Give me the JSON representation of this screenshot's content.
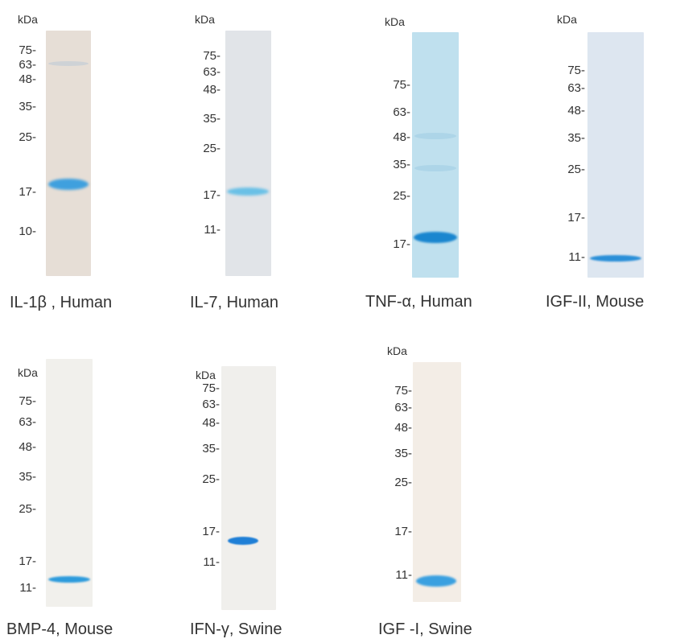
{
  "panels": [
    {
      "kda": "kDa",
      "markers": [
        "75-",
        "63-",
        "48-",
        "35-",
        "25-",
        "17-",
        "10-"
      ],
      "caption": "IL-1β , Human",
      "lane_color": "#e6ded6",
      "band_color": "#3fa0de"
    },
    {
      "kda": "kDa",
      "markers": [
        "75-",
        "63-",
        "48-",
        "35-",
        "25-",
        "17-",
        "11-"
      ],
      "caption": "IL-7, Human",
      "lane_color": "#e1e4e8",
      "band_color": "#6ac0e6"
    },
    {
      "kda": "kDa",
      "markers": [
        "75-",
        "63-",
        "48-",
        "35-",
        "25-",
        "17-"
      ],
      "caption": "TNF-α, Human",
      "lane_color": "#bfe0ee",
      "band_color": "#1a86cf"
    },
    {
      "kda": "kDa",
      "markers": [
        "75-",
        "63-",
        "48-",
        "35-",
        "25-",
        "17-",
        "11-"
      ],
      "caption": "IGF-II, Mouse",
      "lane_color": "#dde6f0",
      "band_color": "#2a8fd8"
    },
    {
      "kda": "kDa",
      "markers": [
        "75-",
        "63-",
        "48-",
        "35-",
        "25-",
        "17-",
        "11-"
      ],
      "caption": "BMP-4, Mouse",
      "lane_color": "#f1f0ec",
      "band_color": "#2d9bdc"
    },
    {
      "kda": "kDa",
      "markers": [
        "75-",
        "63-",
        "48-",
        "35-",
        "25-",
        "17-",
        "11-"
      ],
      "caption": "IFN-γ, Swine",
      "lane_color": "#f0efec",
      "band_color": "#1f7fd6"
    },
    {
      "kda": "kDa",
      "markers": [
        "75-",
        "63-",
        "48-",
        "35-",
        "25-",
        "17-",
        "11-"
      ],
      "caption": "IGF -I, Swine",
      "lane_color": "#f3ede6",
      "band_color": "#3aa0e0"
    }
  ]
}
